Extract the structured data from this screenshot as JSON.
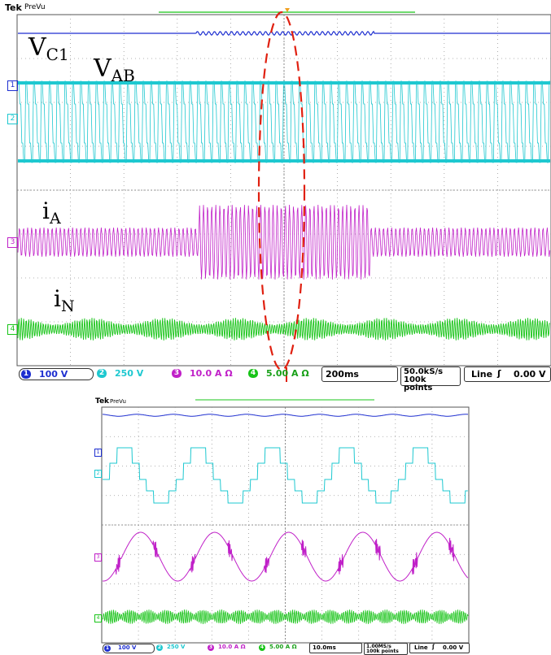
{
  "scopes": {
    "main": {
      "brand": "Tek",
      "mode": "PreVu",
      "overlay_labels": {
        "vc1_main": "V",
        "vc1_sub": "C1",
        "vab_main": "V",
        "vab_sub": "AB",
        "ia_main": "i",
        "ia_sub": "A",
        "in_main": "i",
        "in_sub": "N"
      },
      "channel_markers": [
        "1",
        "2",
        "3",
        "4"
      ],
      "status": {
        "ch1": "100 V",
        "ch2": "250 V",
        "ch3": "10.0 A Ω",
        "ch4": "5.00 A Ω",
        "timebase": "200ms",
        "rate_line1": "50.0kS/s",
        "rate_line2": "100k points",
        "trigger_mode": "Line",
        "trigger_level": "0.00 V"
      }
    },
    "zoom": {
      "brand": "Tek",
      "mode": "PreVu",
      "channel_markers": [
        "1",
        "2",
        "3",
        "4"
      ],
      "status": {
        "ch1": "100 V",
        "ch2": "250 V",
        "ch3": "10.0 A Ω",
        "ch4": "5.00 A Ω",
        "timebase": "10.0ms",
        "rate_line1": "1.00MS/s",
        "rate_line2": "100k points",
        "trigger_mode": "Line",
        "trigger_level": "0.00 V"
      }
    }
  },
  "colors": {
    "ch1": "#1e2fd0",
    "ch2": "#1ec8d0",
    "ch3": "#c020c8",
    "ch4": "#18c418",
    "annotation": "#e02010",
    "grid": "#9a9a9a"
  },
  "chart_data": [
    {
      "type": "line",
      "series": [
        {
          "name": "V",
          "channel": 1,
          "values": [
            0,
            0.04
          ]
        },
        {
          "name": "V",
          "channel": 2,
          "values": [
            -1,
            1
          ]
        },
        {
          "name": "i",
          "channel": 3,
          "values": [
            -1,
            1
          ]
        },
        {
          "name": "i",
          "channel": 4,
          "values": [
            -1,
            1
          ]
        }
      ],
      "grid": true
    },
    {
      "type": "line",
      "series": [
        {
          "channel": 1,
          "values": [
            0,
            0.04
          ]
        },
        {
          "channel": 2,
          "values": [
            -1,
            1
          ]
        },
        {
          "channel": 3,
          "values": [
            -1,
            1
          ]
        },
        {
          "channel": 4,
          "values": [
            -1,
            1
          ]
        }
      ],
      "grid": true
    }
  ]
}
